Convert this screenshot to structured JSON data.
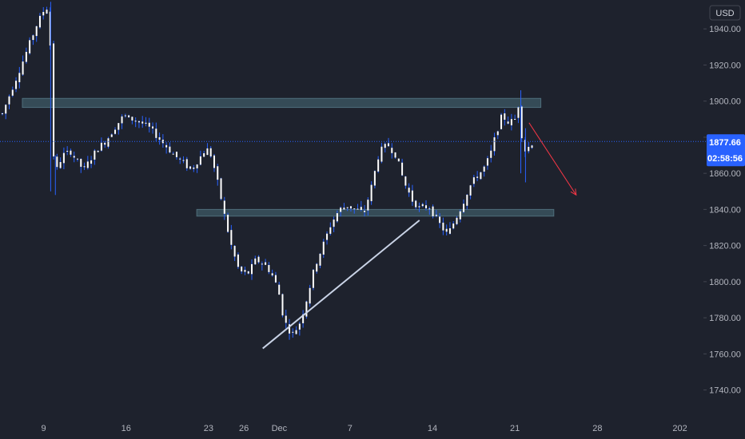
{
  "chart_data": {
    "type": "candlestick",
    "currency": "USD",
    "current_price": "1877.66",
    "countdown": "02:58:56",
    "y_ticks": [
      1740,
      1760,
      1780,
      1800,
      1820,
      1840,
      1860,
      1880,
      1900,
      1920,
      1940
    ],
    "y_tick_labels": [
      "1740.00",
      "1760.00",
      "1780.00",
      "1800.00",
      "1820.00",
      "1840.00",
      "1860.00",
      "1880.00",
      "1900.00",
      "1920.00",
      "1940.00"
    ],
    "ylim": [
      1727,
      1956
    ],
    "x_ticks": [
      "9",
      "16",
      "23",
      "26",
      "Dec",
      "7",
      "14",
      "21",
      "28",
      "202"
    ],
    "x_tick_positions": [
      0,
      7,
      14,
      17,
      20,
      26,
      33,
      40,
      47,
      54
    ],
    "xlim": [
      -3.7,
      56
    ],
    "price_path": [
      [
        -3.5,
        1893
      ],
      [
        -2.8,
        1905
      ],
      [
        -2.0,
        1918
      ],
      [
        -1.3,
        1930
      ],
      [
        -0.6,
        1942
      ],
      [
        0.0,
        1950
      ],
      [
        0.5,
        1953
      ],
      [
        0.7,
        1880
      ],
      [
        1.0,
        1860
      ],
      [
        1.6,
        1870
      ],
      [
        2.3,
        1872
      ],
      [
        2.9,
        1866
      ],
      [
        3.4,
        1862
      ],
      [
        4.0,
        1868
      ],
      [
        4.6,
        1874
      ],
      [
        5.3,
        1878
      ],
      [
        6.0,
        1885
      ],
      [
        6.8,
        1892
      ],
      [
        7.5,
        1890
      ],
      [
        8.3,
        1888
      ],
      [
        9.0,
        1885
      ],
      [
        9.7,
        1880
      ],
      [
        10.4,
        1875
      ],
      [
        11.1,
        1870
      ],
      [
        11.8,
        1866
      ],
      [
        12.5,
        1862
      ],
      [
        13.2,
        1868
      ],
      [
        13.8,
        1874
      ],
      [
        14.2,
        1870
      ],
      [
        14.6,
        1860
      ],
      [
        15.0,
        1848
      ],
      [
        15.5,
        1832
      ],
      [
        16.0,
        1818
      ],
      [
        16.6,
        1806
      ],
      [
        17.3,
        1804
      ],
      [
        18.0,
        1812
      ],
      [
        18.7,
        1810
      ],
      [
        19.3,
        1805
      ],
      [
        19.9,
        1796
      ],
      [
        20.3,
        1782
      ],
      [
        20.7,
        1774
      ],
      [
        21.2,
        1771
      ],
      [
        21.8,
        1778
      ],
      [
        22.4,
        1792
      ],
      [
        23.0,
        1808
      ],
      [
        23.7,
        1820
      ],
      [
        24.4,
        1832
      ],
      [
        25.1,
        1840
      ],
      [
        25.8,
        1842
      ],
      [
        26.5,
        1840
      ],
      [
        27.2,
        1838
      ],
      [
        27.8,
        1852
      ],
      [
        28.5,
        1872
      ],
      [
        29.2,
        1876
      ],
      [
        29.9,
        1870
      ],
      [
        30.6,
        1855
      ],
      [
        31.3,
        1845
      ],
      [
        32.0,
        1840
      ],
      [
        32.7,
        1842
      ],
      [
        33.2,
        1836
      ],
      [
        33.8,
        1830
      ],
      [
        34.3,
        1826
      ],
      [
        34.9,
        1834
      ],
      [
        35.5,
        1842
      ],
      [
        36.1,
        1852
      ],
      [
        36.7,
        1858
      ],
      [
        37.3,
        1862
      ],
      [
        37.9,
        1870
      ],
      [
        38.4,
        1882
      ],
      [
        38.9,
        1892
      ],
      [
        39.5,
        1888
      ],
      [
        40.0,
        1890
      ],
      [
        40.3,
        1898
      ],
      [
        40.6,
        1880
      ],
      [
        40.9,
        1872
      ],
      [
        41.3,
        1876
      ],
      [
        41.7,
        1878
      ]
    ],
    "annotations": {
      "resistance_zone": {
        "x1": -1.8,
        "x2": 42.2,
        "y1": 1896.5,
        "y2": 1901.5
      },
      "support_zone": {
        "x1": 13.0,
        "x2": 43.3,
        "y1": 1836.3,
        "y2": 1840.0
      },
      "trendline": {
        "x1": 18.6,
        "y1": 1763,
        "x2": 31.9,
        "y2": 1834
      },
      "forecast_arrow": {
        "x1": 41.2,
        "y1": 1888,
        "x2": 45.2,
        "y2": 1848
      }
    },
    "colors": {
      "background": "#1e222d",
      "candle": "#ffffff",
      "wick": "#2962ff",
      "zone_fill": "#3d5a66",
      "zone_edge": "#4f6e7b",
      "trendline": "#c9d3e6",
      "arrow": "#f23645",
      "price_line": "#2962ff",
      "badge": "#2962ff",
      "axis_text": "#b2b5be"
    }
  }
}
